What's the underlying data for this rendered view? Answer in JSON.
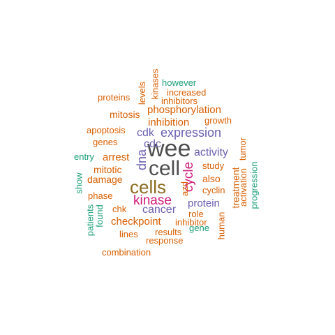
{
  "colors": {
    "dark_gray": "#4d4d4d",
    "olive": "#8c6b1f",
    "magenta": "#d0197a",
    "purple": "#6a5fb0",
    "orange": "#d95f02",
    "teal": "#1b9e77"
  },
  "words": [
    {
      "text": "wee",
      "color": "dark_gray",
      "vertical": false
    },
    {
      "text": "cell",
      "color": "dark_gray",
      "vertical": false
    },
    {
      "text": "cells",
      "color": "olive",
      "vertical": false
    },
    {
      "text": "kinase",
      "color": "magenta",
      "vertical": false
    },
    {
      "text": "cycle",
      "color": "magenta",
      "vertical": true
    },
    {
      "text": "expression",
      "color": "purple",
      "vertical": false
    },
    {
      "text": "dna",
      "color": "purple",
      "vertical": true
    },
    {
      "text": "phosphorylation",
      "color": "orange",
      "vertical": false
    },
    {
      "text": "cancer",
      "color": "purple",
      "vertical": false
    },
    {
      "text": "activity",
      "color": "purple",
      "vertical": false
    },
    {
      "text": "protein",
      "color": "purple",
      "vertical": false
    },
    {
      "text": "cdc",
      "color": "purple",
      "vertical": false
    },
    {
      "text": "cdk",
      "color": "purple",
      "vertical": false
    },
    {
      "text": "inhibition",
      "color": "orange",
      "vertical": false
    },
    {
      "text": "arrest",
      "color": "orange",
      "vertical": false
    },
    {
      "text": "checkpoint",
      "color": "orange",
      "vertical": false
    },
    {
      "text": "mitotic",
      "color": "orange",
      "vertical": false
    },
    {
      "text": "damage",
      "color": "orange",
      "vertical": false
    },
    {
      "text": "mitosis",
      "color": "orange",
      "vertical": false
    },
    {
      "text": "apoptosis",
      "color": "orange",
      "vertical": false
    },
    {
      "text": "genes",
      "color": "orange",
      "vertical": false
    },
    {
      "text": "phase",
      "color": "orange",
      "vertical": false
    },
    {
      "text": "inhibitor",
      "color": "orange",
      "vertical": false
    },
    {
      "text": "cyclin",
      "color": "orange",
      "vertical": false
    },
    {
      "text": "also",
      "color": "orange",
      "vertical": false
    },
    {
      "text": "study",
      "color": "orange",
      "vertical": false
    },
    {
      "text": "growth",
      "color": "orange",
      "vertical": false
    },
    {
      "text": "increased",
      "color": "orange",
      "vertical": false
    },
    {
      "text": "inhibitors",
      "color": "orange",
      "vertical": false
    },
    {
      "text": "proteins",
      "color": "orange",
      "vertical": false
    },
    {
      "text": "levels",
      "color": "orange",
      "vertical": true
    },
    {
      "text": "kinases",
      "color": "orange",
      "vertical": true
    },
    {
      "text": "however",
      "color": "teal",
      "vertical": false
    },
    {
      "text": "entry",
      "color": "teal",
      "vertical": false
    },
    {
      "text": "show",
      "color": "teal",
      "vertical": true
    },
    {
      "text": "patients",
      "color": "teal",
      "vertical": true
    },
    {
      "text": "found",
      "color": "teal",
      "vertical": true
    },
    {
      "text": "chk",
      "color": "orange",
      "vertical": false
    },
    {
      "text": "lines",
      "color": "orange",
      "vertical": false
    },
    {
      "text": "results",
      "color": "orange",
      "vertical": false
    },
    {
      "text": "response",
      "color": "orange",
      "vertical": false
    },
    {
      "text": "gene",
      "color": "teal",
      "vertical": false
    },
    {
      "text": "role",
      "color": "orange",
      "vertical": false
    },
    {
      "text": "azd",
      "color": "orange",
      "vertical": true
    },
    {
      "text": "human",
      "color": "orange",
      "vertical": true
    },
    {
      "text": "combination",
      "color": "orange",
      "vertical": false
    },
    {
      "text": "tumor",
      "color": "orange",
      "vertical": true
    },
    {
      "text": "treatment",
      "color": "orange",
      "vertical": true
    },
    {
      "text": "activation",
      "color": "orange",
      "vertical": true
    },
    {
      "text": "progression",
      "color": "teal",
      "vertical": true
    }
  ]
}
